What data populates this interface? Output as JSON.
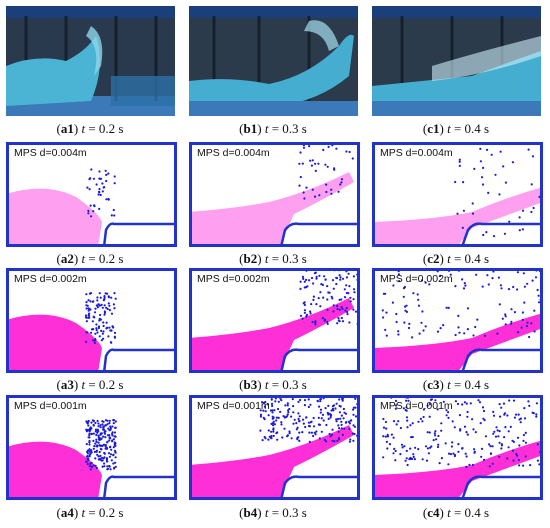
{
  "figure": {
    "rows": [
      {
        "kind": "photo",
        "captions": [
          {
            "id": "a1",
            "time": "t",
            "text": " = 0.2 s"
          },
          {
            "id": "b1",
            "time": "t",
            "text": " = 0.3 s"
          },
          {
            "id": "c1",
            "time": "t",
            "text": " = 0.4 s"
          }
        ]
      },
      {
        "kind": "sim",
        "label": "MPS d=0.004m",
        "captions": [
          {
            "id": "a2",
            "time": "t",
            "text": " = 0.2 s"
          },
          {
            "id": "b2",
            "time": "t",
            "text": " = 0.3 s"
          },
          {
            "id": "c2",
            "time": "t",
            "text": " = 0.4 s"
          }
        ]
      },
      {
        "kind": "sim",
        "label": "MPS d=0.002m",
        "captions": [
          {
            "id": "a3",
            "time": "t",
            "text": " = 0.2 s"
          },
          {
            "id": "b3",
            "time": "t",
            "text": " = 0.3 s"
          },
          {
            "id": "c3",
            "time": "t",
            "text": " = 0.4 s"
          }
        ]
      },
      {
        "kind": "sim",
        "label": "MPS d=0.001m",
        "captions": [
          {
            "id": "a4",
            "time": "t",
            "text": " = 0.2 s"
          },
          {
            "id": "b4",
            "time": "t",
            "text": " = 0.3 s"
          },
          {
            "id": "c4",
            "time": "t",
            "text": " = 0.4 s"
          }
        ]
      }
    ],
    "colors": {
      "boundary": "#2233cc",
      "fluid": "#ff2fd8",
      "fluid_light": "#ff9ff0",
      "particles": "#1a1ad8",
      "photo_water": "#3fa7c9",
      "photo_dark": "#1c2a3c"
    }
  }
}
